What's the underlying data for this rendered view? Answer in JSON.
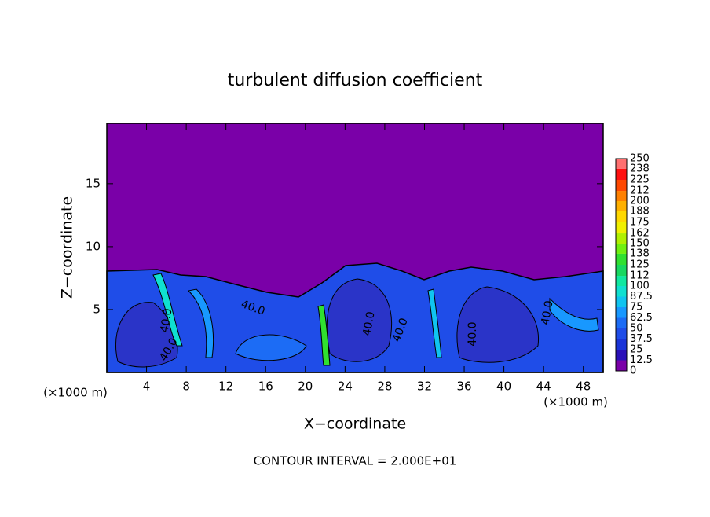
{
  "chart_data": {
    "type": "contour",
    "title": "turbulent diffusion coefficient",
    "x_label": "X−coordinate",
    "y_label": "Z−coordinate",
    "x_unit_label": "(×1000 m)",
    "y_unit_label": "(×1000 m)",
    "footer": "CONTOUR INTERVAL = 2.000E+01",
    "xlim": [
      0,
      50
    ],
    "ylim": [
      0,
      19.8
    ],
    "xticks": [
      4,
      8,
      12,
      16,
      20,
      24,
      28,
      32,
      36,
      40,
      44,
      48
    ],
    "yticks": [
      5,
      10,
      15
    ],
    "contour_labels": [
      "40.0",
      "40.0",
      "40.0",
      "40.0",
      "40.0",
      "40.0",
      "40.0"
    ],
    "colorbar": {
      "levels": [
        0,
        12.5,
        25,
        37.5,
        50,
        62.5,
        75,
        87.5,
        100,
        112,
        125,
        138,
        150,
        162,
        175,
        188,
        200,
        212,
        225,
        238,
        250
      ],
      "colors": [
        "#7a00a8",
        "#2a10b8",
        "#1a34d8",
        "#1f4de8",
        "#1c6cf5",
        "#1898ff",
        "#10c4f0",
        "#10e0d0",
        "#10e8a0",
        "#18d860",
        "#30e030",
        "#70f010",
        "#b0f000",
        "#f0f000",
        "#ffd800",
        "#ffb000",
        "#ff8000",
        "#ff4800",
        "#ff1010",
        "#ff7070"
      ]
    }
  }
}
